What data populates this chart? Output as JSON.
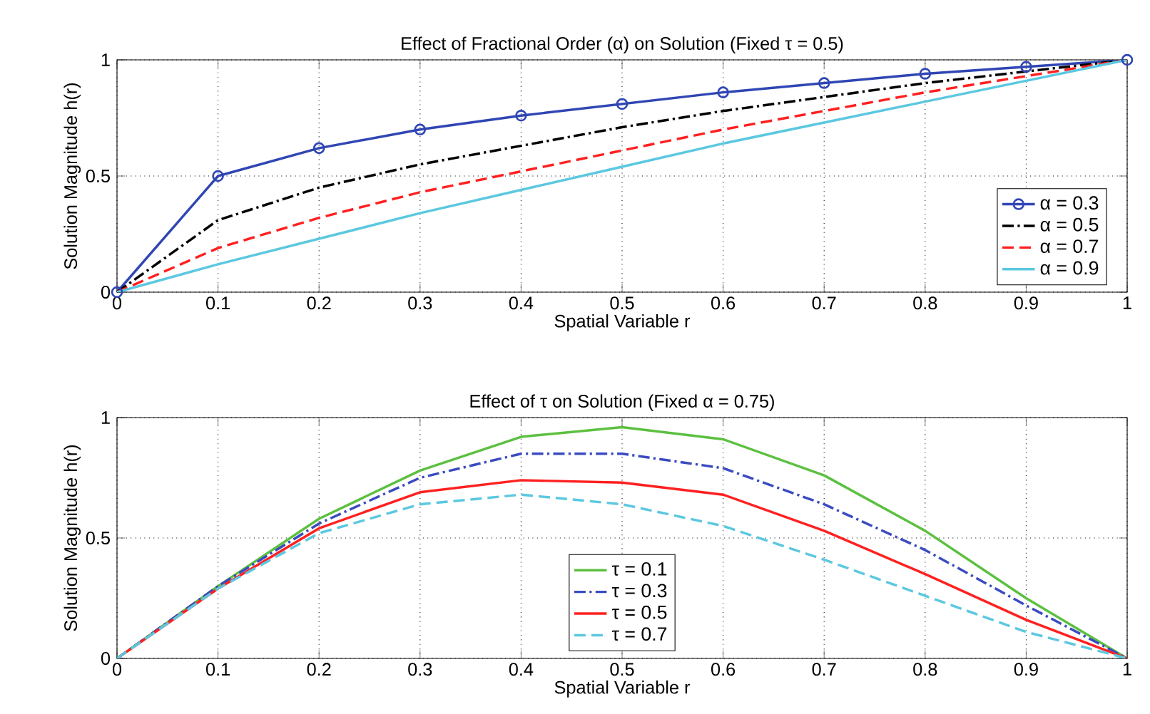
{
  "chart_data": [
    {
      "type": "line",
      "title": "Effect of Fractional Order (α) on Solution (Fixed τ = 0.5)",
      "xlabel": "Spatial Variable r",
      "ylabel": "Solution Magnitude h(r)",
      "x": [
        0,
        0.1,
        0.2,
        0.3,
        0.4,
        0.5,
        0.6,
        0.7,
        0.8,
        0.9,
        1
      ],
      "series": [
        {
          "name": "α = 0.3",
          "color": "#3046b4",
          "marker": "circle",
          "line_style": "solid",
          "values": [
            0,
            0.5,
            0.62,
            0.7,
            0.76,
            0.81,
            0.86,
            0.9,
            0.94,
            0.97,
            1.0
          ]
        },
        {
          "name": "α = 0.5",
          "color": "#000000",
          "line_style": "dashdot",
          "values": [
            0,
            0.31,
            0.45,
            0.55,
            0.63,
            0.71,
            0.78,
            0.84,
            0.9,
            0.95,
            1.0
          ]
        },
        {
          "name": "α = 0.7",
          "color": "#ff2020",
          "line_style": "dashed",
          "values": [
            0,
            0.19,
            0.32,
            0.43,
            0.52,
            0.61,
            0.7,
            0.78,
            0.86,
            0.93,
            1.0
          ]
        },
        {
          "name": "α = 0.9",
          "color": "#5bc8e0",
          "line_style": "solid",
          "values": [
            0,
            0.12,
            0.23,
            0.34,
            0.44,
            0.54,
            0.64,
            0.73,
            0.82,
            0.91,
            1.0
          ]
        }
      ],
      "xlim": [
        0,
        1
      ],
      "ylim": [
        0,
        1
      ],
      "xticks": [
        0,
        0.1,
        0.2,
        0.3,
        0.4,
        0.5,
        0.6,
        0.7,
        0.8,
        0.9,
        1
      ],
      "yticks": [
        0,
        0.5,
        1
      ],
      "grid": true,
      "legend": "bottom right"
    },
    {
      "type": "line",
      "title": "Effect of τ on Solution (Fixed α = 0.75)",
      "xlabel": "Spatial Variable r",
      "ylabel": "Solution Magnitude h(r)",
      "x": [
        0,
        0.1,
        0.2,
        0.3,
        0.4,
        0.5,
        0.6,
        0.7,
        0.8,
        0.9,
        1
      ],
      "series": [
        {
          "name": "τ = 0.1",
          "color": "#5cc040",
          "line_style": "solid",
          "values": [
            0,
            0.3,
            0.58,
            0.78,
            0.92,
            0.96,
            0.91,
            0.76,
            0.53,
            0.25,
            0
          ]
        },
        {
          "name": "τ = 0.3",
          "color": "#3a4bc0",
          "line_style": "dashdot",
          "values": [
            0,
            0.3,
            0.56,
            0.75,
            0.85,
            0.85,
            0.79,
            0.64,
            0.45,
            0.22,
            0
          ]
        },
        {
          "name": "τ = 0.5",
          "color": "#ff2020",
          "line_style": "solid",
          "values": [
            0,
            0.29,
            0.54,
            0.69,
            0.74,
            0.73,
            0.68,
            0.53,
            0.35,
            0.16,
            0
          ]
        },
        {
          "name": "τ = 0.7",
          "color": "#5bc8e0",
          "line_style": "dashed",
          "values": [
            0,
            0.29,
            0.52,
            0.64,
            0.68,
            0.64,
            0.55,
            0.41,
            0.26,
            0.11,
            0
          ]
        }
      ],
      "xlim": [
        0,
        1
      ],
      "ylim": [
        0,
        1
      ],
      "xticks": [
        0,
        0.1,
        0.2,
        0.3,
        0.4,
        0.5,
        0.6,
        0.7,
        0.8,
        0.9,
        1
      ],
      "yticks": [
        0,
        0.5,
        1
      ],
      "grid": true,
      "legend": "bottom"
    }
  ]
}
